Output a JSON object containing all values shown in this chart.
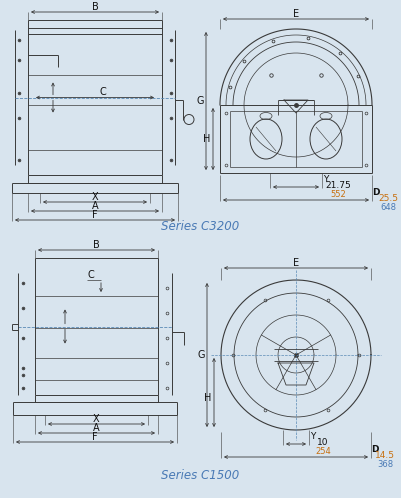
{
  "bg_color": "#d8e4ee",
  "title_c3200": "Series C3200",
  "title_c1500": "Series C1500",
  "title_fontsize": 8.5,
  "title_color": "#4a7ab5",
  "dim_color_black": "#111111",
  "dim_color_orange": "#c87010",
  "dim_color_blue": "#4a7ab5",
  "c3200_dims": {
    "Y_value": "21.75",
    "Y_mm": "552",
    "D_value": "25.5",
    "D_mm": "648"
  },
  "c1500_dims": {
    "Y_value": "10",
    "Y_mm": "254",
    "D_value": "14.5",
    "D_mm": "368"
  },
  "line_color": "#3a3a3a",
  "dash_color": "#5a8ab5"
}
